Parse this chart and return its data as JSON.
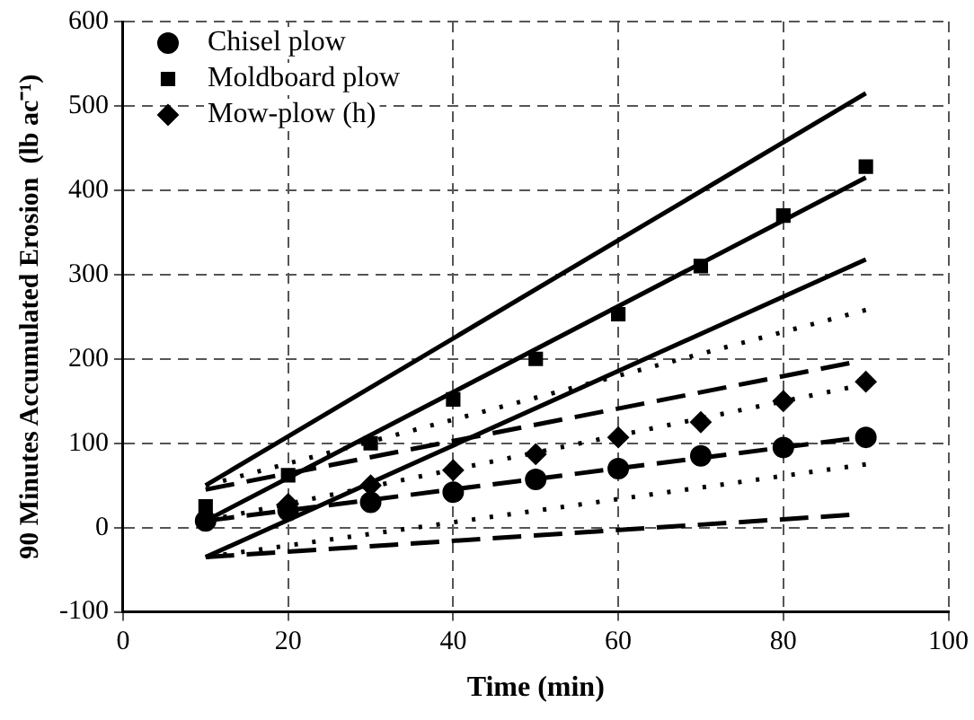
{
  "chart_data": {
    "type": "scatter",
    "xlabel": "Time (min)",
    "ylabel": "90 Minutes Accumulated Erosion  (lb ac⁻¹)",
    "xlim": [
      0,
      100
    ],
    "xticks": [
      0,
      20,
      40,
      60,
      80,
      100
    ],
    "ylim": [
      -100,
      600
    ],
    "yticks": [
      -100,
      0,
      100,
      200,
      300,
      400,
      500,
      600
    ],
    "grid": true,
    "legend": "top left",
    "series": [
      {
        "name": "Chisel plow",
        "type": "scatter",
        "marker": "circle",
        "color": "#000000",
        "x": [
          10,
          20,
          30,
          40,
          50,
          60,
          70,
          80,
          90
        ],
        "values": [
          8,
          20,
          30,
          42,
          57,
          70,
          85,
          95,
          107
        ]
      },
      {
        "name": "Moldboard plow",
        "type": "scatter",
        "marker": "square",
        "color": "#000000",
        "x": [
          10,
          20,
          30,
          40,
          50,
          60,
          70,
          80,
          90
        ],
        "values": [
          25,
          62,
          100,
          152,
          200,
          253,
          310,
          370,
          428
        ]
      },
      {
        "name": "Mow-plow (h)",
        "type": "scatter",
        "marker": "diamond",
        "color": "#000000",
        "x": [
          20,
          30,
          40,
          50,
          60,
          70,
          80,
          90
        ],
        "values": [
          28,
          50,
          68,
          87,
          107,
          125,
          150,
          173
        ]
      },
      {
        "type": "line",
        "line_style": "solid",
        "marker": "none",
        "color": "#000000",
        "x": [
          10,
          90
        ],
        "values": [
          50,
          515
        ]
      },
      {
        "type": "line",
        "line_style": "solid",
        "marker": "none",
        "color": "#000000",
        "x": [
          10,
          90
        ],
        "values": [
          8,
          415
        ]
      },
      {
        "type": "line",
        "line_style": "solid",
        "marker": "none",
        "color": "#000000",
        "x": [
          10,
          90
        ],
        "values": [
          -35,
          318
        ]
      },
      {
        "type": "line",
        "line_style": "dotted",
        "marker": "none",
        "color": "#000000",
        "x": [
          10,
          90
        ],
        "values": [
          50,
          258
        ]
      },
      {
        "type": "line",
        "line_style": "dotted",
        "marker": "none",
        "color": "#000000",
        "x": [
          10,
          90
        ],
        "values": [
          8,
          170
        ]
      },
      {
        "type": "line",
        "line_style": "dotted",
        "marker": "none",
        "color": "#000000",
        "x": [
          10,
          90
        ],
        "values": [
          -35,
          75
        ]
      },
      {
        "type": "line",
        "line_style": "dashed",
        "marker": "none",
        "color": "#000000",
        "x": [
          10,
          88
        ],
        "values": [
          45,
          195
        ]
      },
      {
        "type": "line",
        "line_style": "dashed",
        "marker": "none",
        "color": "#000000",
        "x": [
          10,
          88
        ],
        "values": [
          8,
          105
        ]
      },
      {
        "type": "line",
        "line_style": "dashed",
        "marker": "none",
        "color": "#000000",
        "x": [
          10,
          88
        ],
        "values": [
          -35,
          15
        ]
      }
    ]
  }
}
